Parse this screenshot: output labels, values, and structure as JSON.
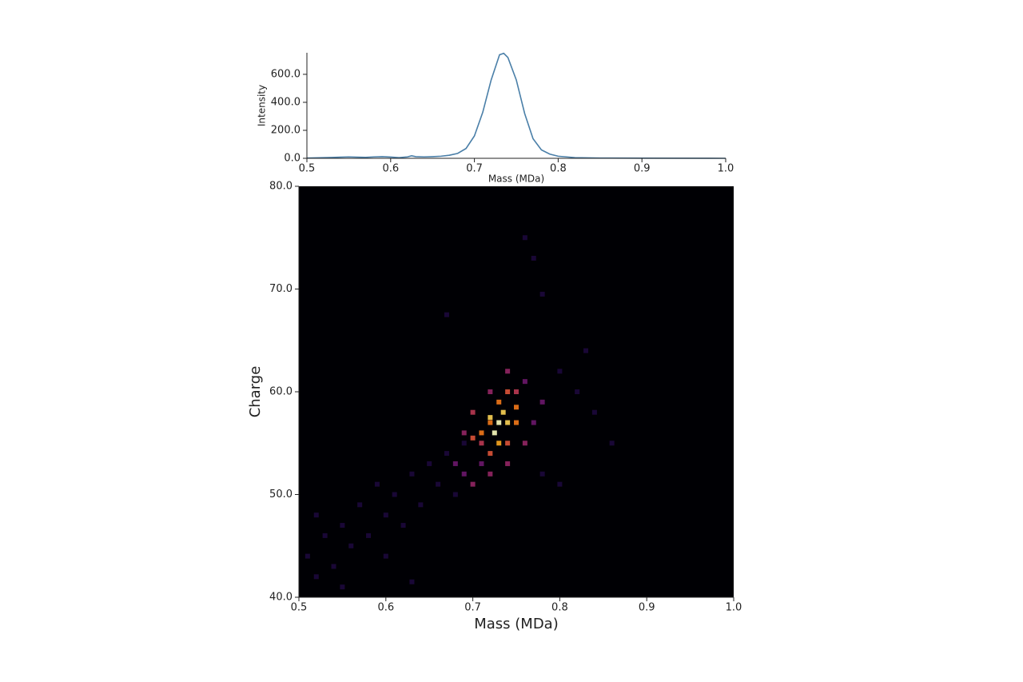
{
  "chart_data": [
    {
      "type": "line",
      "x_label": "Mass (MDa)",
      "y_label": "Intensity",
      "x": [
        0.5,
        0.51,
        0.52,
        0.53,
        0.54,
        0.55,
        0.56,
        0.57,
        0.58,
        0.59,
        0.6,
        0.61,
        0.62,
        0.625,
        0.63,
        0.64,
        0.65,
        0.66,
        0.67,
        0.68,
        0.69,
        0.7,
        0.71,
        0.72,
        0.73,
        0.735,
        0.74,
        0.75,
        0.76,
        0.77,
        0.78,
        0.79,
        0.8,
        0.82,
        0.85,
        0.9,
        1
      ],
      "series": [
        {
          "color": "#4a7fa8",
          "values": [
            2,
            3,
            5,
            6,
            8,
            10,
            8,
            7,
            10,
            12,
            9,
            5,
            10,
            18,
            12,
            10,
            12,
            15,
            22,
            35,
            70,
            160,
            330,
            560,
            740,
            750,
            720,
            560,
            320,
            140,
            60,
            30,
            15,
            5,
            2,
            1,
            0
          ]
        }
      ],
      "xlim": [
        0.5,
        1
      ],
      "xticks": [
        0.5,
        0.6,
        0.7,
        0.8,
        0.9,
        {
          "value": 1,
          "label": "1.0"
        }
      ],
      "ylim": [
        0,
        754
      ],
      "yticks": [
        {
          "value": 0,
          "label": "0.0"
        },
        {
          "value": 200,
          "label": "200.0"
        },
        {
          "value": 400,
          "label": "400.0"
        },
        {
          "value": 600,
          "label": "600.0"
        }
      ]
    },
    {
      "type": "heatmap",
      "x_label": "Mass (MDa)",
      "y_label": "Charge",
      "colormap": "magma",
      "background": "#000004",
      "x": [
        0.51,
        0.52,
        0.53,
        0.54,
        0.55,
        0.56,
        0.57,
        0.58,
        0.59,
        0.6,
        0.61,
        0.62,
        0.63,
        0.64,
        0.65,
        0.66,
        0.67,
        0.68,
        0.69,
        0.67,
        0.78,
        0.77,
        0.76,
        0.8,
        0.82,
        0.84,
        0.86,
        0.78,
        0.8,
        0.83,
        0.52,
        0.55,
        0.6,
        0.63,
        0.68,
        0.69,
        0.7,
        0.71,
        0.72,
        0.74,
        0.76,
        0.77,
        0.78,
        0.76,
        0.74,
        0.72,
        0.7,
        0.69,
        0.71,
        0.75,
        0.71,
        0.72,
        0.73,
        0.74,
        0.72,
        0.74,
        0.75,
        0.75,
        0.73,
        0.7,
        0.725,
        0.73,
        0.735,
        0.72,
        0.74
      ],
      "y": [
        44,
        42,
        46,
        43,
        47,
        45,
        49,
        46,
        51,
        48,
        50,
        47,
        52,
        49,
        53,
        51,
        54,
        50,
        55,
        67.5,
        69.5,
        73,
        75,
        62,
        60,
        58,
        55,
        52,
        51,
        64,
        48,
        41,
        44,
        41.5,
        53,
        52,
        51,
        53,
        52,
        53,
        55,
        57,
        59,
        61,
        62,
        60,
        58,
        56,
        55,
        60,
        56,
        57,
        59,
        60,
        54,
        55,
        57,
        58.5,
        55,
        55.5,
        56,
        57,
        58,
        57.5,
        57
      ],
      "values": [
        1,
        1,
        1,
        1,
        1,
        1,
        1,
        1,
        1,
        1,
        1,
        1,
        1,
        1,
        1,
        1,
        1,
        1,
        1,
        1,
        1,
        1,
        1,
        1,
        1,
        1,
        1,
        1,
        1,
        1,
        1,
        1,
        1,
        1,
        3,
        3,
        4,
        3,
        4,
        4,
        4,
        3,
        3,
        3,
        4,
        4,
        5,
        4,
        5,
        5,
        7,
        7,
        7,
        6,
        6,
        6,
        7,
        7,
        8,
        6,
        10,
        10,
        9,
        9,
        9
      ],
      "xlim": [
        0.5,
        1
      ],
      "xticks": [
        0.5,
        0.6,
        0.7,
        0.8,
        0.9,
        {
          "value": 1,
          "label": "1.0"
        }
      ],
      "ylim": [
        40,
        80
      ],
      "yticks": [
        {
          "value": 40,
          "label": "40.0"
        },
        {
          "value": 50,
          "label": "50.0"
        },
        {
          "value": 60,
          "label": "60.0"
        },
        {
          "value": 70,
          "label": "70.0"
        },
        {
          "value": 80,
          "label": "80.0"
        }
      ]
    }
  ]
}
